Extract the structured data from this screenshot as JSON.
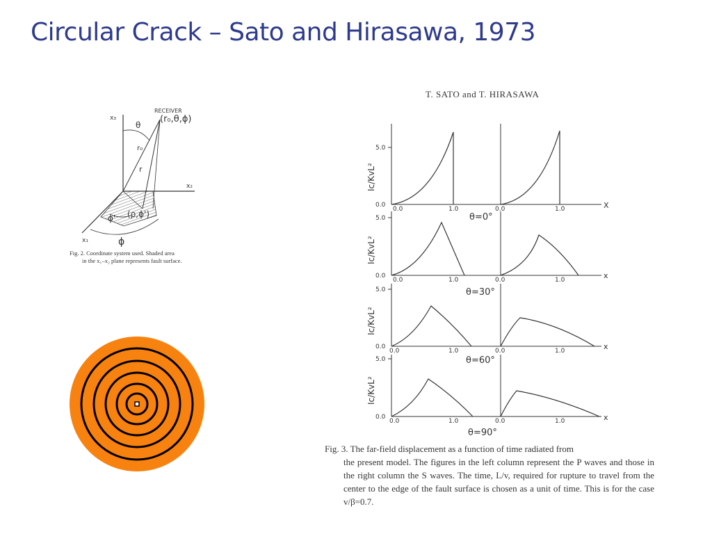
{
  "slide": {
    "title": "Circular Crack – Sato and Hirasawa, 1973"
  },
  "fig2": {
    "receiver_label": "RECEIVER",
    "receiver_coords": "(r₀,θ,ϕ)",
    "axis_x1": "x₁",
    "axis_x2": "x₂",
    "axis_x3": "x₃",
    "theta": "θ",
    "r0": "r₀",
    "r": "r",
    "phi_prime": "ϕ'",
    "source_coords": "(ρ,ϕ')",
    "phi": "ϕ",
    "caption_line1": "Fig. 2.   Coordinate system used.  Shaded area",
    "caption_line2": "in the x₁–x₂ plane represents fault surface."
  },
  "paper_header": "T. SATO and T. HIRASAWA",
  "fig3": {
    "ylabel": "Ic/KvL²",
    "y_tick_top": "5.0",
    "y_tick_zero": "0.0",
    "x_tick_zero": "0.0",
    "x_tick_one": "1.0",
    "x_axis": "X",
    "x_axis_lower": "x",
    "panels": [
      {
        "label": "θ=0°"
      },
      {
        "label": "θ=30°"
      },
      {
        "label": "θ=60°"
      },
      {
        "label": "θ=90°"
      }
    ],
    "caption_line1": "Fig. 3.   The far-field displacement as a function of time radiated from",
    "caption_rest": "the present model.  The figures in the left column represent the P waves and those in the right column the S waves.  The time, L/v, required for rupture to travel from the center to the edge of the fault surface is chosen as a unit of time.  This is for the case v/β=0.7."
  },
  "colors": {
    "title": "#2e3a8c",
    "crack_fill": "#f7820f",
    "crack_rings": "#000000"
  }
}
